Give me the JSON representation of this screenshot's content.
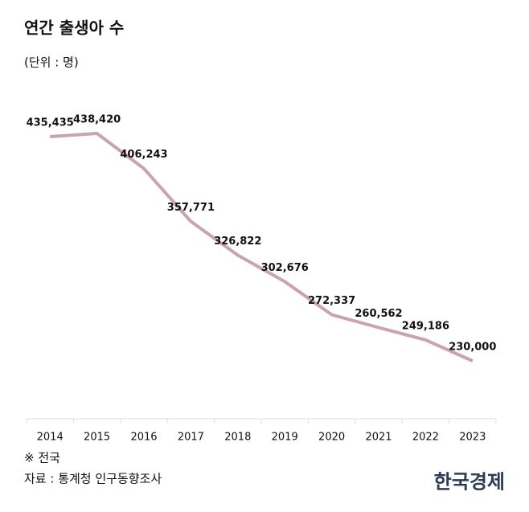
{
  "chart_data": {
    "type": "line",
    "title": "연간 출생아 수",
    "subtitle": "(단위 : 명)",
    "categories": [
      "2014",
      "2015",
      "2016",
      "2017",
      "2018",
      "2019",
      "2020",
      "2021",
      "2022",
      "2023"
    ],
    "series": [
      {
        "color": "#c9a3ad",
        "values": [
          435435,
          438420,
          406243,
          357771,
          326822,
          302676,
          272337,
          260562,
          249186,
          230000
        ],
        "value_labels": [
          "435,435",
          "438,420",
          "406,243",
          "357,771",
          "326,822",
          "302,676",
          "272,337",
          "260,562",
          "249,186",
          "230,000"
        ]
      }
    ],
    "note": "※ 전국",
    "source": "자료 : 통계청 인구동향조사",
    "brand": "한국경제"
  }
}
